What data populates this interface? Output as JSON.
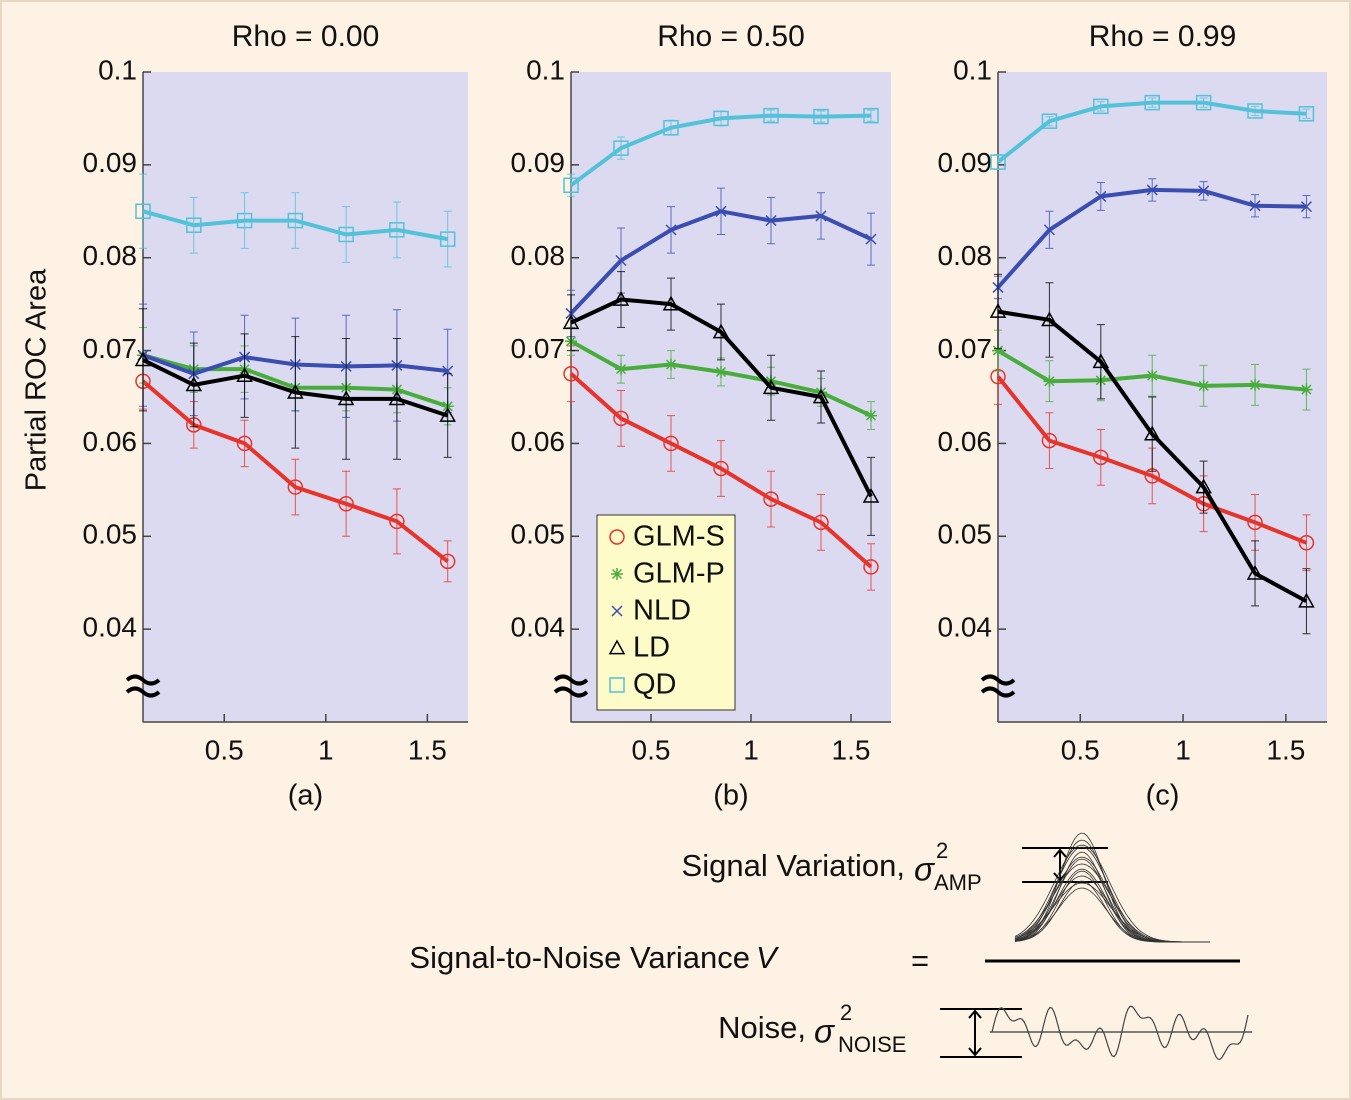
{
  "chart_data": [
    {
      "type": "line",
      "title": "Rho = 0.00",
      "caption": "(a)",
      "ylabel": "Partial ROC Area",
      "x": [
        0.1,
        0.35,
        0.6,
        0.85,
        1.1,
        1.35,
        1.6
      ],
      "xlim": [
        0.1,
        1.7
      ],
      "xticks": [
        0.5,
        1,
        1.5
      ],
      "ylim": [
        0.03,
        0.1
      ],
      "yticks": [
        0.04,
        0.05,
        0.06,
        0.07,
        0.08,
        0.09,
        0.1
      ],
      "series": [
        {
          "name": "GLM-S",
          "color": "#e8332a",
          "marker": "circle",
          "values": [
            0.0667,
            0.062,
            0.06,
            0.0553,
            0.0535,
            0.0516,
            0.0473
          ],
          "errors": [
            0.003,
            0.0025,
            0.0025,
            0.003,
            0.0035,
            0.0035,
            0.0022
          ]
        },
        {
          "name": "GLM-P",
          "color": "#49ad3c",
          "marker": "asterisk",
          "values": [
            0.0695,
            0.068,
            0.068,
            0.066,
            0.066,
            0.0658,
            0.064
          ],
          "errors": [
            0.003,
            0.0025,
            0.0025,
            0.0025,
            0.0025,
            0.0025,
            0.002
          ]
        },
        {
          "name": "NLD",
          "color": "#3a4db0",
          "marker": "x",
          "values": [
            0.0695,
            0.0675,
            0.0693,
            0.0685,
            0.0683,
            0.0684,
            0.0678
          ],
          "errors": [
            0.0055,
            0.0045,
            0.0045,
            0.005,
            0.0055,
            0.006,
            0.0045
          ]
        },
        {
          "name": "LD",
          "color": "#000000",
          "marker": "triangle",
          "values": [
            0.069,
            0.0663,
            0.0673,
            0.0655,
            0.0648,
            0.0648,
            0.063
          ],
          "errors": [
            0.0055,
            0.0045,
            0.0045,
            0.006,
            0.0065,
            0.0065,
            0.0045
          ]
        },
        {
          "name": "QD",
          "color": "#52c2d8",
          "marker": "square",
          "values": [
            0.085,
            0.0835,
            0.084,
            0.084,
            0.0825,
            0.083,
            0.082
          ],
          "errors": [
            0.004,
            0.003,
            0.003,
            0.003,
            0.003,
            0.003,
            0.003
          ]
        }
      ]
    },
    {
      "type": "line",
      "title": "Rho = 0.50",
      "caption": "(b)",
      "legend": "lower left",
      "x": [
        0.1,
        0.35,
        0.6,
        0.85,
        1.1,
        1.35,
        1.6
      ],
      "xlim": [
        0.1,
        1.7
      ],
      "xticks": [
        0.5,
        1,
        1.5
      ],
      "ylim": [
        0.03,
        0.1
      ],
      "yticks": [
        0.04,
        0.05,
        0.06,
        0.07,
        0.08,
        0.09,
        0.1
      ],
      "series": [
        {
          "name": "GLM-S",
          "color": "#e8332a",
          "marker": "circle",
          "values": [
            0.0675,
            0.0627,
            0.06,
            0.0573,
            0.054,
            0.0515,
            0.0467
          ],
          "errors": [
            0.003,
            0.003,
            0.003,
            0.003,
            0.003,
            0.003,
            0.0025
          ]
        },
        {
          "name": "GLM-P",
          "color": "#49ad3c",
          "marker": "asterisk",
          "values": [
            0.071,
            0.068,
            0.0685,
            0.0677,
            0.0667,
            0.0655,
            0.063
          ],
          "errors": [
            0.0015,
            0.0015,
            0.0015,
            0.0015,
            0.0015,
            0.0015,
            0.0015
          ]
        },
        {
          "name": "NLD",
          "color": "#3a4db0",
          "marker": "x",
          "values": [
            0.074,
            0.0797,
            0.083,
            0.085,
            0.084,
            0.0845,
            0.082
          ],
          "errors": [
            0.0025,
            0.0035,
            0.0025,
            0.0025,
            0.0025,
            0.0025,
            0.0028
          ]
        },
        {
          "name": "LD",
          "color": "#000000",
          "marker": "triangle",
          "values": [
            0.073,
            0.0755,
            0.075,
            0.072,
            0.066,
            0.065,
            0.0543
          ],
          "errors": [
            0.003,
            0.003,
            0.0028,
            0.003,
            0.0035,
            0.0028,
            0.0042
          ]
        },
        {
          "name": "QD",
          "color": "#52c2d8",
          "marker": "square",
          "values": [
            0.0878,
            0.0918,
            0.094,
            0.095,
            0.0953,
            0.0952,
            0.0953
          ],
          "errors": [
            0.0012,
            0.0012,
            0.0008,
            0.0008,
            0.0006,
            0.0006,
            0.0006
          ]
        }
      ]
    },
    {
      "type": "line",
      "title": "Rho = 0.99",
      "caption": "(c)",
      "x": [
        0.1,
        0.35,
        0.6,
        0.85,
        1.1,
        1.35,
        1.6
      ],
      "xlim": [
        0.1,
        1.7
      ],
      "xticks": [
        0.5,
        1,
        1.5
      ],
      "ylim": [
        0.03,
        0.1
      ],
      "yticks": [
        0.04,
        0.05,
        0.06,
        0.07,
        0.08,
        0.09,
        0.1
      ],
      "series": [
        {
          "name": "GLM-S",
          "color": "#e8332a",
          "marker": "circle",
          "values": [
            0.0672,
            0.0603,
            0.0585,
            0.0565,
            0.0535,
            0.0515,
            0.0493
          ],
          "errors": [
            0.003,
            0.003,
            0.003,
            0.003,
            0.003,
            0.003,
            0.003
          ]
        },
        {
          "name": "GLM-P",
          "color": "#49ad3c",
          "marker": "asterisk",
          "values": [
            0.07,
            0.0667,
            0.0668,
            0.0673,
            0.0662,
            0.0663,
            0.0658
          ],
          "errors": [
            0.0022,
            0.0022,
            0.0022,
            0.0022,
            0.0022,
            0.0022,
            0.0022
          ]
        },
        {
          "name": "NLD",
          "color": "#3a4db0",
          "marker": "x",
          "values": [
            0.0768,
            0.083,
            0.0866,
            0.0873,
            0.0872,
            0.0856,
            0.0855
          ],
          "errors": [
            0.0012,
            0.002,
            0.0015,
            0.0012,
            0.001,
            0.0012,
            0.0012
          ]
        },
        {
          "name": "LD",
          "color": "#000000",
          "marker": "triangle",
          "values": [
            0.0742,
            0.0733,
            0.0688,
            0.061,
            0.0553,
            0.046,
            0.043
          ],
          "errors": [
            0.004,
            0.004,
            0.004,
            0.004,
            0.0028,
            0.0035,
            0.0035
          ]
        },
        {
          "name": "QD",
          "color": "#52c2d8",
          "marker": "square",
          "values": [
            0.0903,
            0.0947,
            0.0963,
            0.0967,
            0.0967,
            0.0958,
            0.0955
          ],
          "errors": [
            0.0008,
            0.0005,
            0.0005,
            0.0005,
            0.0005,
            0.0005,
            0.0005
          ]
        }
      ]
    }
  ],
  "formula": {
    "signal": {
      "label": "Signal Variation,",
      "symbol": "σ",
      "sup": "2",
      "sub": "AMP"
    },
    "ratio": {
      "label": "Signal-to-Noise Variance",
      "symbol": "V",
      "equals": "="
    },
    "noise": {
      "label": "Noise,",
      "symbol": "σ",
      "sup": "2",
      "sub": "NOISE"
    }
  }
}
